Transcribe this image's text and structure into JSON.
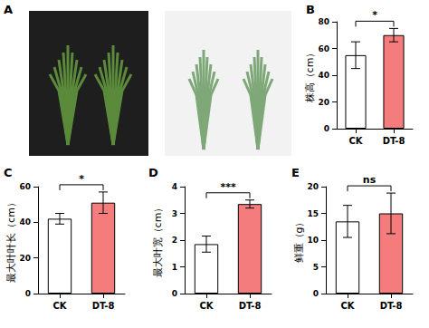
{
  "photo_panel": {
    "label": "A"
  },
  "chart_data": [
    {
      "type": "bar",
      "title": "B",
      "y_label": "株高（cm）",
      "categories": [
        "CK",
        "DT-8"
      ],
      "values": [
        55,
        70
      ],
      "errors": [
        10,
        5
      ],
      "colors": [
        "#ffffff",
        "#f47c7c"
      ],
      "ylim": [
        0,
        80
      ],
      "yticks": [
        0,
        20,
        40,
        60,
        80
      ],
      "grid": false,
      "annotations": [
        {
          "text": "*"
        }
      ]
    },
    {
      "type": "bar",
      "title": "C",
      "y_label": "最大叶叶长（cm）",
      "categories": [
        "CK",
        "DT-8"
      ],
      "values": [
        42,
        51
      ],
      "errors": [
        3,
        6
      ],
      "colors": [
        "#ffffff",
        "#f47c7c"
      ],
      "ylim": [
        0,
        60
      ],
      "yticks": [
        0,
        20,
        40,
        60
      ],
      "grid": false,
      "annotations": [
        {
          "text": "*"
        }
      ]
    },
    {
      "type": "bar",
      "title": "D",
      "y_label": "最大叶宽（cm）",
      "categories": [
        "CK",
        "DT-8"
      ],
      "values": [
        1.85,
        3.35
      ],
      "errors": [
        0.3,
        0.15
      ],
      "colors": [
        "#ffffff",
        "#f47c7c"
      ],
      "ylim": [
        0,
        4
      ],
      "yticks": [
        0,
        1,
        2,
        3,
        4
      ],
      "grid": false,
      "annotations": [
        {
          "text": "***"
        }
      ]
    },
    {
      "type": "bar",
      "title": "E",
      "y_label": "鲜重（g）",
      "categories": [
        "CK",
        "DT-8"
      ],
      "values": [
        13.5,
        15
      ],
      "errors": [
        3,
        3.8
      ],
      "colors": [
        "#ffffff",
        "#f47c7c"
      ],
      "ylim": [
        0,
        20
      ],
      "yticks": [
        0,
        5,
        10,
        15,
        20
      ],
      "grid": false,
      "annotations": [
        {
          "text": "ns"
        }
      ]
    }
  ]
}
